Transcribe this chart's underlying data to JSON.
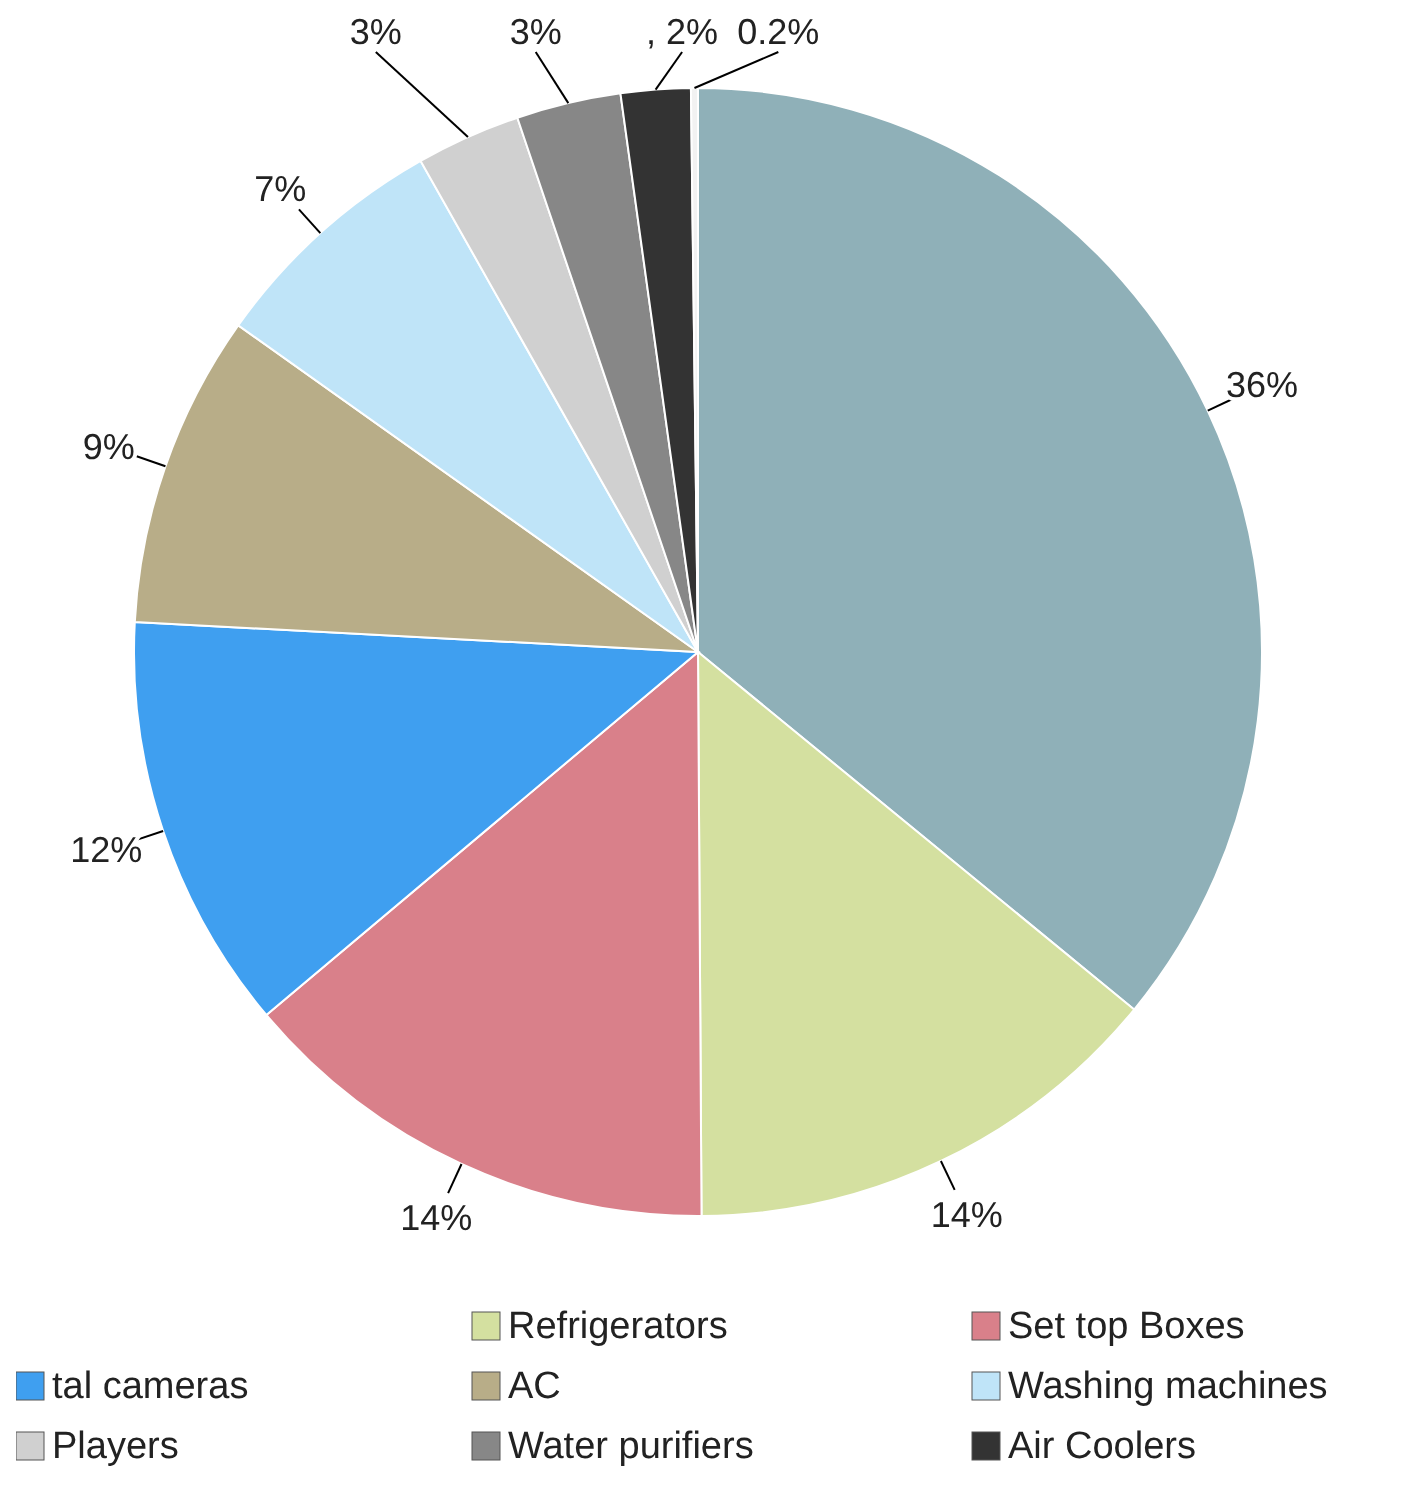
{
  "chart_data": {
    "type": "pie",
    "categories": [
      null,
      "Refrigerators",
      "Set top Boxes",
      "tal cameras",
      "AC",
      "Washing machines",
      "Players",
      "Water purifiers",
      "Air Coolers",
      null
    ],
    "values": [
      36,
      14,
      14,
      12,
      9,
      7,
      3,
      3,
      2,
      0.2
    ],
    "value_labels": [
      "36%",
      "14%",
      "14%",
      "12%",
      "9%",
      "7%",
      "3%",
      "3%",
      ", 2%",
      "0.2%"
    ],
    "colors": [
      "#8fb0b8",
      "#d4e0a0",
      "#d9808a",
      "#3f9ff0",
      "#b8ad88",
      "#bfe4f8",
      "#d0d0d0",
      "#878787",
      "#333333",
      "#f2f2f2"
    ],
    "legend": "bottom"
  }
}
